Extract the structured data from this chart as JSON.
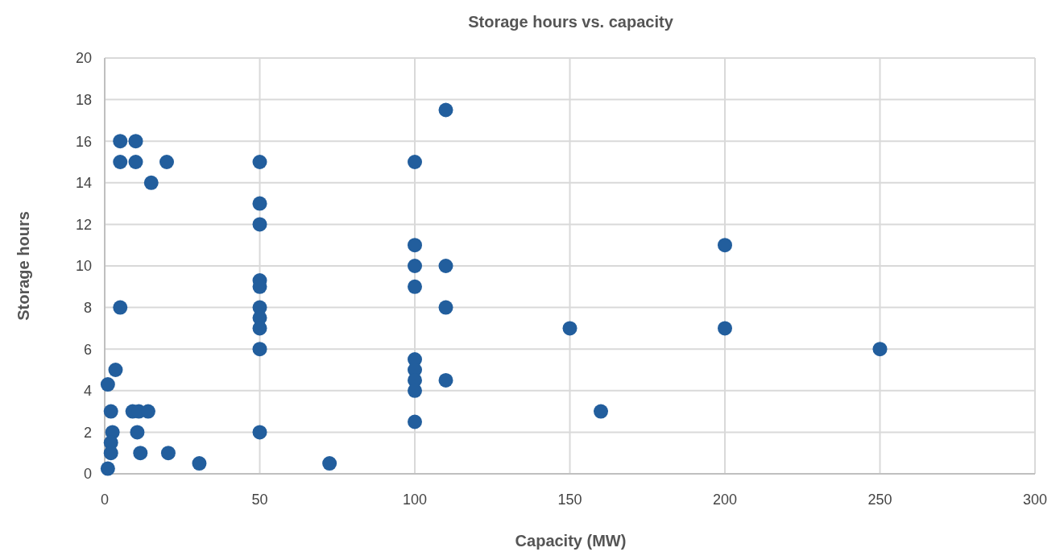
{
  "chart_data": {
    "type": "scatter",
    "title": "Storage hours vs. capacity",
    "xlabel": "Capacity (MW)",
    "ylabel": "Storage hours",
    "xlim": [
      0,
      300
    ],
    "xticks": [
      0,
      50,
      100,
      150,
      200,
      250,
      300
    ],
    "ylim": [
      0,
      20
    ],
    "yticks": [
      0,
      2,
      4,
      6,
      8,
      10,
      12,
      14,
      16,
      18,
      20
    ],
    "grid": true,
    "marker": "circle",
    "series": [
      {
        "color": "#225e9d",
        "x": [
          5,
          10,
          5,
          10,
          20,
          15,
          5,
          3.5,
          1,
          2,
          9,
          11,
          14,
          2.5,
          10.5,
          2,
          2,
          11.5,
          20.5,
          1,
          30.5,
          72.5,
          50,
          50,
          50,
          50,
          50,
          50,
          50,
          50,
          50,
          50,
          100,
          100,
          100,
          100,
          100,
          100,
          100,
          100,
          100,
          110,
          110,
          110,
          110,
          150,
          200,
          200,
          160,
          250
        ],
        "values": [
          16,
          16,
          15,
          15,
          15,
          14,
          8,
          5,
          4.3,
          3,
          3,
          3,
          3,
          2,
          2,
          1.5,
          1,
          1,
          1,
          0.25,
          0.5,
          0.5,
          15,
          13,
          12,
          9.3,
          9,
          8,
          7.5,
          7,
          6,
          2,
          15,
          11,
          10,
          9,
          5.5,
          5,
          4.5,
          4,
          2.5,
          17.5,
          10,
          8,
          4.5,
          7,
          11,
          7,
          3,
          6
        ]
      }
    ]
  }
}
